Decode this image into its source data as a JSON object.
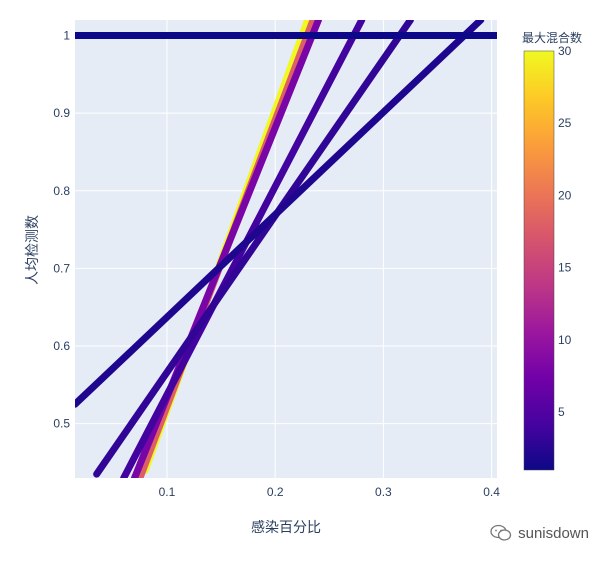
{
  "chart_data": {
    "type": "scatter",
    "xlabel": "感染百分比",
    "ylabel": "人均检测数",
    "xlim": [
      0.015,
      0.405
    ],
    "ylim": [
      0.43,
      1.02
    ],
    "x_ticks": [
      0.1,
      0.2,
      0.3,
      0.4
    ],
    "x_tick_labels": [
      "0.1",
      "0.2",
      "0.3",
      "0.4"
    ],
    "y_ticks": [
      0.5,
      0.6,
      0.7,
      0.8,
      0.9,
      1.0
    ],
    "y_tick_labels": [
      "0.5",
      "0.6",
      "0.7",
      "0.8",
      "0.9",
      "1"
    ],
    "grid": true,
    "colorbar": {
      "title": "最大混合数",
      "min": 1,
      "max": 30,
      "ticks": [
        5,
        10,
        15,
        20,
        25,
        30
      ],
      "tick_labels": [
        "5",
        "10",
        "15",
        "20",
        "25",
        "30"
      ],
      "colorscale": "plasma"
    },
    "series": [
      {
        "max_pool": 1,
        "x": [
          0.015,
          0.405
        ],
        "y": [
          1.0,
          1.0
        ]
      },
      {
        "max_pool": 2,
        "x": [
          0.015,
          0.39
        ],
        "y": [
          0.525,
          1.02
        ]
      },
      {
        "max_pool": 3,
        "x": [
          0.035,
          0.325
        ],
        "y": [
          0.435,
          1.02
        ]
      },
      {
        "max_pool": 4,
        "x": [
          0.06,
          0.28
        ],
        "y": [
          0.43,
          1.02
        ]
      },
      {
        "max_pool": 8,
        "x": [
          0.07,
          0.24
        ],
        "y": [
          0.43,
          1.02
        ]
      },
      {
        "max_pool": 18,
        "x": [
          0.075,
          0.235
        ],
        "y": [
          0.43,
          1.02
        ]
      },
      {
        "max_pool": 30,
        "x": [
          0.08,
          0.23
        ],
        "y": [
          0.44,
          1.02
        ]
      }
    ]
  },
  "watermark": {
    "text": "sunisdown"
  }
}
